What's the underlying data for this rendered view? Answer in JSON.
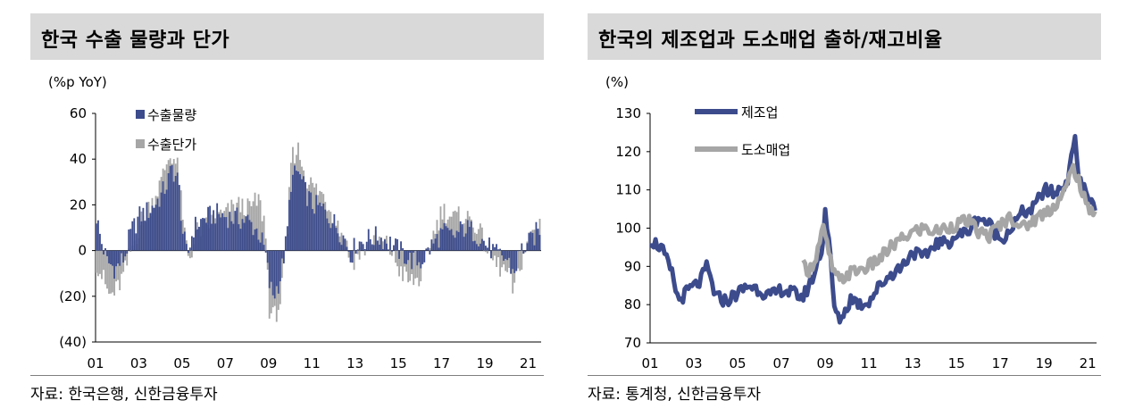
{
  "left_panel": {
    "title": "한국 수출 물량과 단가",
    "source": "자료: 한국은행, 신한금융투자"
  },
  "right_panel": {
    "title": "한국의 제조업과 도소매업 출하/재고비율",
    "source": "자료: 통계청, 신한금융투자"
  },
  "colors": {
    "volume": "#3c4b8c",
    "price": "#a6a6a6",
    "title_bg": "#d9d9d9"
  },
  "chart_data": [
    {
      "type": "bar",
      "unit_label": "(%p YoY)",
      "ylim": [
        -40,
        60
      ],
      "y_ticks": [
        "60",
        "40",
        "20",
        "0",
        "(20)",
        "(40)"
      ],
      "x_ticks": [
        "01",
        "03",
        "05",
        "07",
        "09",
        "11",
        "13",
        "15",
        "17",
        "19",
        "21"
      ],
      "x_range": [
        2001,
        2021.6
      ],
      "legend": "top-left",
      "series": [
        {
          "name": "수출물량",
          "color": "#3c4b8c",
          "points": [
            [
              2001.0,
              15
            ],
            [
              2001.2,
              5
            ],
            [
              2001.5,
              -5
            ],
            [
              2001.9,
              -8
            ],
            [
              2002.3,
              -3
            ],
            [
              2002.6,
              8
            ],
            [
              2003.0,
              15
            ],
            [
              2003.5,
              18
            ],
            [
              2004.0,
              24
            ],
            [
              2004.3,
              30
            ],
            [
              2004.5,
              36
            ],
            [
              2004.8,
              30
            ],
            [
              2005.0,
              8
            ],
            [
              2005.2,
              -3
            ],
            [
              2005.5,
              10
            ],
            [
              2006.0,
              14
            ],
            [
              2006.5,
              16
            ],
            [
              2007.0,
              15
            ],
            [
              2007.5,
              14
            ],
            [
              2008.0,
              13
            ],
            [
              2008.5,
              8
            ],
            [
              2008.8,
              0
            ],
            [
              2009.0,
              -15
            ],
            [
              2009.2,
              -20
            ],
            [
              2009.5,
              -12
            ],
            [
              2009.8,
              5
            ],
            [
              2010.0,
              30
            ],
            [
              2010.3,
              35
            ],
            [
              2010.7,
              25
            ],
            [
              2011.0,
              20
            ],
            [
              2011.5,
              18
            ],
            [
              2012.0,
              12
            ],
            [
              2012.5,
              5
            ],
            [
              2012.8,
              -2
            ],
            [
              2013.0,
              3
            ],
            [
              2013.5,
              5
            ],
            [
              2014.0,
              6
            ],
            [
              2014.5,
              4
            ],
            [
              2015.0,
              0
            ],
            [
              2015.5,
              -4
            ],
            [
              2016.0,
              -5
            ],
            [
              2016.5,
              2
            ],
            [
              2017.0,
              8
            ],
            [
              2017.5,
              6
            ],
            [
              2018.0,
              10
            ],
            [
              2018.5,
              8
            ],
            [
              2019.0,
              3
            ],
            [
              2019.5,
              -2
            ],
            [
              2020.0,
              -4
            ],
            [
              2020.3,
              -10
            ],
            [
              2020.6,
              0
            ],
            [
              2021.0,
              3
            ],
            [
              2021.5,
              10
            ]
          ]
        },
        {
          "name": "수출단가",
          "color": "#a6a6a6",
          "points": [
            [
              2001.0,
              -5
            ],
            [
              2001.3,
              -12
            ],
            [
              2001.6,
              -20
            ],
            [
              2001.9,
              -18
            ],
            [
              2002.3,
              -10
            ],
            [
              2002.6,
              0
            ],
            [
              2003.0,
              12
            ],
            [
              2003.5,
              20
            ],
            [
              2004.0,
              30
            ],
            [
              2004.3,
              40
            ],
            [
              2004.5,
              42
            ],
            [
              2004.8,
              35
            ],
            [
              2005.0,
              12
            ],
            [
              2005.3,
              -4
            ],
            [
              2005.6,
              8
            ],
            [
              2006.0,
              10
            ],
            [
              2006.5,
              14
            ],
            [
              2007.0,
              16
            ],
            [
              2007.5,
              20
            ],
            [
              2008.0,
              18
            ],
            [
              2008.5,
              22
            ],
            [
              2008.8,
              12
            ],
            [
              2009.0,
              -25
            ],
            [
              2009.2,
              -30
            ],
            [
              2009.5,
              -22
            ],
            [
              2009.8,
              0
            ],
            [
              2010.0,
              40
            ],
            [
              2010.3,
              45
            ],
            [
              2010.7,
              32
            ],
            [
              2011.0,
              28
            ],
            [
              2011.5,
              24
            ],
            [
              2012.0,
              15
            ],
            [
              2012.5,
              4
            ],
            [
              2012.8,
              -5
            ],
            [
              2013.0,
              -3
            ],
            [
              2013.5,
              2
            ],
            [
              2014.0,
              5
            ],
            [
              2014.5,
              2
            ],
            [
              2015.0,
              -8
            ],
            [
              2015.5,
              -14
            ],
            [
              2016.0,
              -12
            ],
            [
              2016.5,
              5
            ],
            [
              2017.0,
              18
            ],
            [
              2017.5,
              14
            ],
            [
              2018.0,
              15
            ],
            [
              2018.5,
              12
            ],
            [
              2019.0,
              2
            ],
            [
              2019.5,
              -6
            ],
            [
              2020.0,
              -10
            ],
            [
              2020.3,
              -18
            ],
            [
              2020.6,
              -6
            ],
            [
              2021.0,
              5
            ],
            [
              2021.5,
              12
            ]
          ]
        }
      ]
    },
    {
      "type": "line",
      "unit_label": "(%)",
      "ylim": [
        70,
        130
      ],
      "y_ticks": [
        "130",
        "120",
        "110",
        "100",
        "90",
        "80",
        "70"
      ],
      "x_ticks": [
        "01",
        "03",
        "05",
        "07",
        "09",
        "11",
        "13",
        "15",
        "17",
        "19",
        "21"
      ],
      "x_range": [
        2001,
        2021.4
      ],
      "legend": "top-left",
      "series": [
        {
          "name": "제조업",
          "color": "#3c4b8c",
          "points": [
            [
              2001.0,
              97
            ],
            [
              2001.5,
              95
            ],
            [
              2002.0,
              88
            ],
            [
              2002.3,
              81
            ],
            [
              2002.8,
              84
            ],
            [
              2003.3,
              86
            ],
            [
              2003.6,
              90
            ],
            [
              2004.0,
              82
            ],
            [
              2004.5,
              81
            ],
            [
              2005.0,
              83
            ],
            [
              2005.5,
              85
            ],
            [
              2006.0,
              84
            ],
            [
              2006.5,
              82
            ],
            [
              2007.0,
              84
            ],
            [
              2007.5,
              83
            ],
            [
              2008.0,
              82
            ],
            [
              2008.5,
              88
            ],
            [
              2008.9,
              96
            ],
            [
              2009.0,
              105
            ],
            [
              2009.2,
              95
            ],
            [
              2009.4,
              80
            ],
            [
              2009.6,
              76
            ],
            [
              2009.9,
              78
            ],
            [
              2010.2,
              82
            ],
            [
              2010.6,
              80
            ],
            [
              2011.0,
              81
            ],
            [
              2011.5,
              85
            ],
            [
              2012.0,
              88
            ],
            [
              2012.5,
              90
            ],
            [
              2013.0,
              94
            ],
            [
              2013.5,
              92
            ],
            [
              2014.0,
              96
            ],
            [
              2014.5,
              96
            ],
            [
              2015.0,
              98
            ],
            [
              2015.5,
              99
            ],
            [
              2016.0,
              103
            ],
            [
              2016.5,
              101
            ],
            [
              2017.0,
              97
            ],
            [
              2017.5,
              100
            ],
            [
              2018.0,
              104
            ],
            [
              2018.5,
              105
            ],
            [
              2019.0,
              110
            ],
            [
              2019.5,
              109
            ],
            [
              2020.0,
              112
            ],
            [
              2020.2,
              115
            ],
            [
              2020.4,
              126
            ],
            [
              2020.6,
              112
            ],
            [
              2020.9,
              110
            ],
            [
              2021.1,
              107
            ],
            [
              2021.3,
              106
            ]
          ]
        },
        {
          "name": "도소매업",
          "color": "#a6a6a6",
          "points": [
            [
              2008.0,
              90
            ],
            [
              2008.3,
              89
            ],
            [
              2008.6,
              93
            ],
            [
              2008.9,
              100
            ],
            [
              2009.1,
              95
            ],
            [
              2009.4,
              88
            ],
            [
              2009.7,
              86
            ],
            [
              2010.0,
              88
            ],
            [
              2010.5,
              89
            ],
            [
              2011.0,
              90
            ],
            [
              2011.5,
              92
            ],
            [
              2012.0,
              95
            ],
            [
              2012.5,
              97
            ],
            [
              2013.0,
              99
            ],
            [
              2013.5,
              100
            ],
            [
              2014.0,
              99
            ],
            [
              2014.5,
              100
            ],
            [
              2015.0,
              101
            ],
            [
              2015.5,
              102
            ],
            [
              2016.0,
              99
            ],
            [
              2016.5,
              98
            ],
            [
              2017.0,
              101
            ],
            [
              2017.5,
              103
            ],
            [
              2018.0,
              100
            ],
            [
              2018.5,
              102
            ],
            [
              2019.0,
              104
            ],
            [
              2019.5,
              106
            ],
            [
              2020.0,
              110
            ],
            [
              2020.3,
              116
            ],
            [
              2020.5,
              114
            ],
            [
              2020.8,
              108
            ],
            [
              2021.0,
              105
            ],
            [
              2021.3,
              105
            ]
          ]
        }
      ]
    }
  ]
}
